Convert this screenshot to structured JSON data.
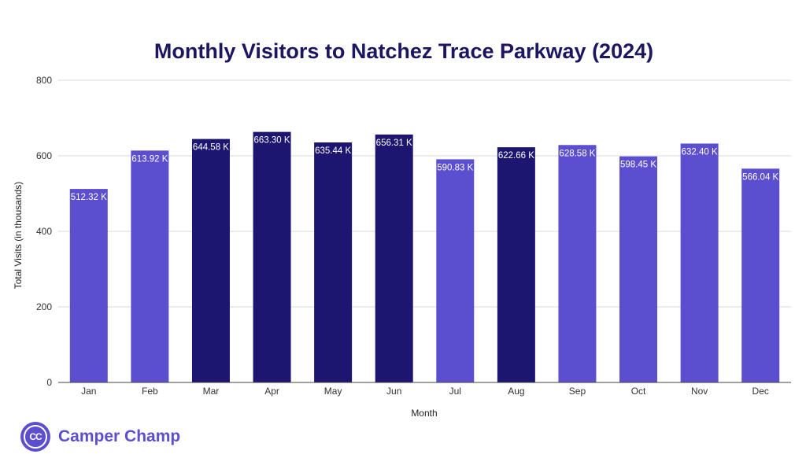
{
  "brand": {
    "name": "Camper Champ",
    "logo_text": "CC",
    "color": "#5b4fcf"
  },
  "colors": {
    "light_bar": "#5b4fcf",
    "dark_bar": "#1c1670",
    "title": "#1c1660"
  },
  "chart_data": {
    "type": "bar",
    "title": "Monthly Visitors to Natchez Trace Parkway (2024)",
    "xlabel": "Month",
    "ylabel": "Total Visits (in thousands)",
    "ylim": [
      0,
      800
    ],
    "yticks": [
      0,
      200,
      400,
      600,
      800
    ],
    "grid": true,
    "categories": [
      "Jan",
      "Feb",
      "Mar",
      "Apr",
      "May",
      "Jun",
      "Jul",
      "Aug",
      "Sep",
      "Oct",
      "Nov",
      "Dec"
    ],
    "values": [
      512.32,
      613.92,
      644.58,
      663.3,
      635.44,
      656.31,
      590.83,
      622.66,
      628.58,
      598.45,
      632.4,
      566.04
    ],
    "data_labels": [
      "512.32 K",
      "613.92 K",
      "644.58 K",
      "663.30 K",
      "635.44 K",
      "656.31 K",
      "590.83 K",
      "622.66 K",
      "628.58 K",
      "598.45 K",
      "632.40 K",
      "566.04 K"
    ],
    "bar_colors": [
      "#5b4fcf",
      "#5b4fcf",
      "#1c1670",
      "#1c1670",
      "#1c1670",
      "#1c1670",
      "#5b4fcf",
      "#1c1670",
      "#5b4fcf",
      "#5b4fcf",
      "#5b4fcf",
      "#5b4fcf"
    ]
  }
}
